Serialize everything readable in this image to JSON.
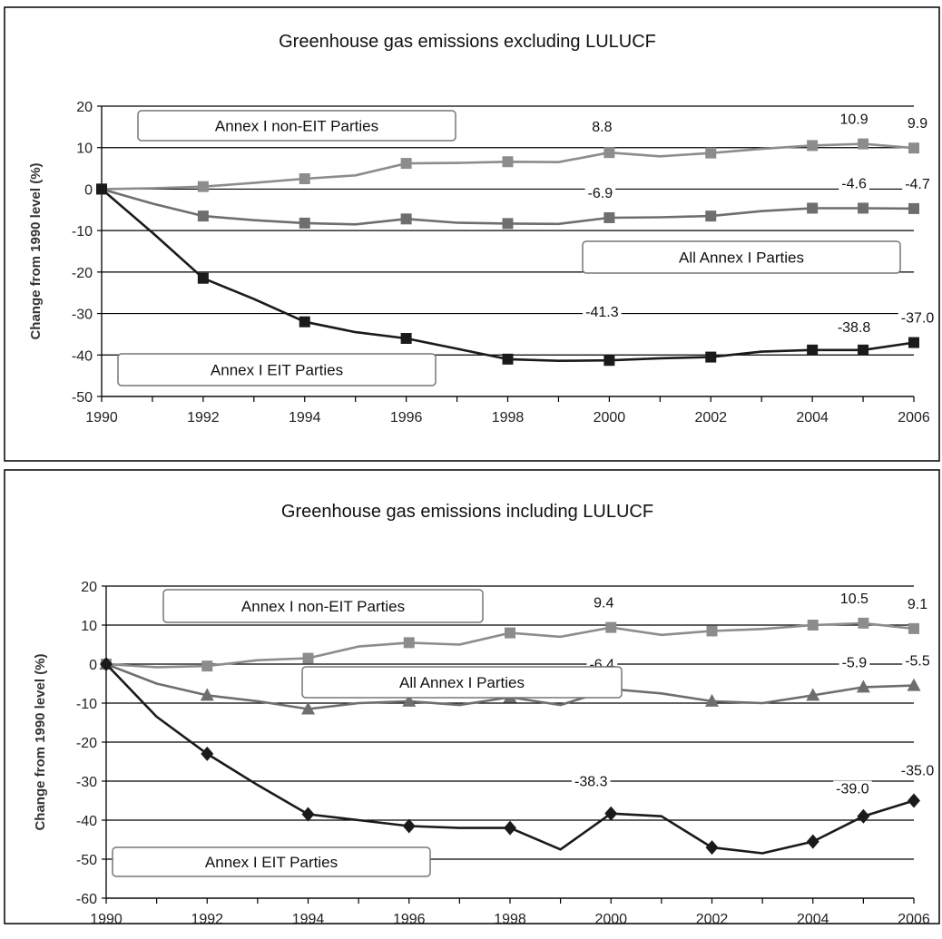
{
  "chart_data": [
    {
      "type": "line",
      "title": "Greenhouse gas emissions excluding LULUCF",
      "ylabel": "Change from 1990 level (%)",
      "xlabel": "",
      "ylim": [
        -50,
        20
      ],
      "yticks": [
        "20",
        "10",
        "0",
        "-10",
        "-20",
        "-30",
        "-40",
        "-50"
      ],
      "xticks": [
        "1990",
        "1992",
        "1994",
        "1996",
        "1998",
        "2000",
        "2002",
        "2004",
        "2006"
      ],
      "grid": "horizontal",
      "legend": "boxed labels placed beside each series",
      "x": [
        1990,
        1991,
        1992,
        1993,
        1994,
        1995,
        1996,
        1997,
        1998,
        1999,
        2000,
        2001,
        2002,
        2003,
        2004,
        2005,
        2006
      ],
      "marked_x": [
        1990,
        1992,
        1994,
        1996,
        1998,
        2000,
        2002,
        2004,
        2005,
        2006
      ],
      "series": [
        {
          "name": "Annex I non-EIT Parties",
          "color": "#8c8c8c",
          "marker": "square",
          "values": [
            0,
            0.2,
            0.6,
            1.5,
            2.5,
            3.3,
            6.2,
            6.3,
            6.6,
            6.5,
            8.8,
            7.9,
            8.7,
            9.7,
            10.5,
            10.9,
            9.9
          ]
        },
        {
          "name": "All Annex I Parties",
          "color": "#6e6e6e",
          "marker": "square",
          "values": [
            0,
            -3.5,
            -6.5,
            -7.5,
            -8.2,
            -8.5,
            -7.2,
            -8.1,
            -8.3,
            -8.4,
            -6.9,
            -6.8,
            -6.5,
            -5.3,
            -4.6,
            -4.6,
            -4.7
          ]
        },
        {
          "name": "Annex I EIT Parties",
          "color": "#1a1a1a",
          "marker": "square",
          "values": [
            0,
            -10.5,
            -21.5,
            -26.5,
            -32,
            -34.5,
            -36,
            -38.5,
            -41,
            -41.4,
            -41.3,
            -40.8,
            -40.5,
            -39.2,
            -38.8,
            -38.8,
            -37.0
          ]
        }
      ],
      "data_labels": [
        {
          "x": 2000,
          "text": "8.8",
          "series": 0
        },
        {
          "x": 2005,
          "text": "10.9",
          "series": 0
        },
        {
          "x": 2006,
          "text": "9.9",
          "series": 0
        },
        {
          "x": 2000,
          "text": "-6.9",
          "series": 1
        },
        {
          "x": 2005,
          "text": "-4.6",
          "series": 1
        },
        {
          "x": 2006,
          "text": "-4.7",
          "series": 1
        },
        {
          "x": 2000,
          "text": "-41.3",
          "series": 2
        },
        {
          "x": 2005,
          "text": "-38.8",
          "series": 2
        },
        {
          "x": 2006,
          "text": "-37.0",
          "series": 2
        }
      ],
      "legend_boxes": [
        {
          "text": "Annex I non-EIT Parties",
          "series": 0
        },
        {
          "text": "All Annex I Parties",
          "series": 1
        },
        {
          "text": "Annex I EIT Parties",
          "series": 2
        }
      ]
    },
    {
      "type": "line",
      "title": "Greenhouse gas emissions including LULUCF",
      "ylabel": "Change from 1990 level (%)",
      "xlabel": "",
      "ylim": [
        -60,
        20
      ],
      "yticks": [
        "20",
        "10",
        "0",
        "-10",
        "-20",
        "-30",
        "-40",
        "-50",
        "-60"
      ],
      "xticks": [
        "1990",
        "1992",
        "1994",
        "1996",
        "1998",
        "2000",
        "2002",
        "2004",
        "2006"
      ],
      "grid": "horizontal",
      "legend": "boxed labels placed beside each series",
      "x": [
        1990,
        1991,
        1992,
        1993,
        1994,
        1995,
        1996,
        1997,
        1998,
        1999,
        2000,
        2001,
        2002,
        2003,
        2004,
        2005,
        2006
      ],
      "marked_x": [
        1990,
        1992,
        1994,
        1996,
        1998,
        2000,
        2002,
        2004,
        2005,
        2006
      ],
      "series": [
        {
          "name": "Annex I non-EIT Parties",
          "color": "#8c8c8c",
          "marker": "square",
          "values": [
            0,
            -0.8,
            -0.5,
            1.0,
            1.5,
            4.5,
            5.5,
            5.0,
            8.0,
            7.0,
            9.4,
            7.5,
            8.5,
            9.0,
            10.0,
            10.5,
            9.1
          ]
        },
        {
          "name": "All Annex I Parties",
          "color": "#6e6e6e",
          "marker": "triangle",
          "values": [
            0,
            -5.0,
            -8.0,
            -9.5,
            -11.5,
            -10.0,
            -9.5,
            -10.5,
            -8.5,
            -10.5,
            -6.4,
            -7.5,
            -9.5,
            -10.0,
            -8.0,
            -5.9,
            -5.5
          ]
        },
        {
          "name": "Annex I EIT Parties",
          "color": "#1a1a1a",
          "marker": "diamond",
          "values": [
            0,
            -13.5,
            -23.0,
            -31.0,
            -38.5,
            -40.0,
            -41.5,
            -42.0,
            -42.0,
            -47.5,
            -38.3,
            -39.0,
            -47.0,
            -48.5,
            -45.5,
            -39.0,
            -35.0
          ]
        }
      ],
      "data_labels": [
        {
          "x": 2000,
          "text": "9.4",
          "series": 0
        },
        {
          "x": 2005,
          "text": "10.5",
          "series": 0
        },
        {
          "x": 2006,
          "text": "9.1",
          "series": 0
        },
        {
          "x": 2000,
          "text": "-6.4",
          "series": 1
        },
        {
          "x": 2005,
          "text": "-5.9",
          "series": 1
        },
        {
          "x": 2006,
          "text": "-5.5",
          "series": 1
        },
        {
          "x": 2000,
          "text": "-38.3",
          "series": 2
        },
        {
          "x": 2005,
          "text": "-39.0",
          "series": 2
        },
        {
          "x": 2006,
          "text": "-35.0",
          "series": 2
        }
      ],
      "legend_boxes": [
        {
          "text": "Annex I non-EIT Parties",
          "series": 0
        },
        {
          "text": "All Annex I Parties",
          "series": 1
        },
        {
          "text": "Annex I EIT Parties",
          "series": 2
        }
      ]
    }
  ]
}
